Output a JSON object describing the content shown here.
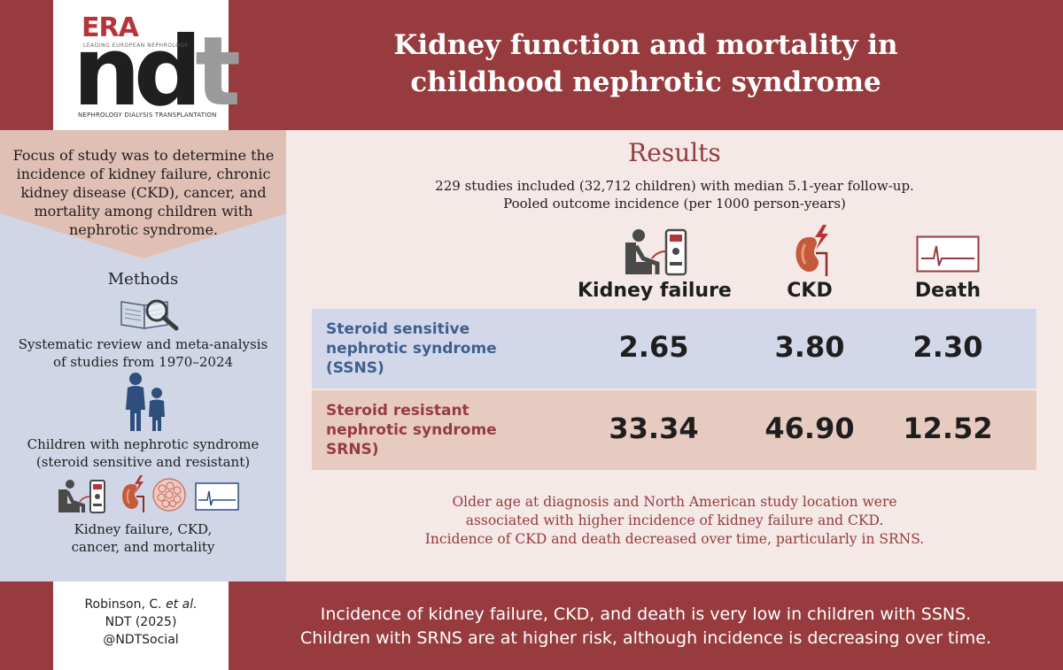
{
  "logo": {
    "era": "ERA",
    "era_sub": "LEADING EUROPEAN NEPHROLOGY",
    "ndt_nd": "nd",
    "ndt_t": "t",
    "sub": "NEPHROLOGY DIALYSIS TRANSPLANTATION"
  },
  "title": {
    "line1": "Kidney function and mortality in",
    "line2": "childhood nephrotic syndrome"
  },
  "focus": {
    "lines": [
      "Focus of study was to determine the",
      "incidence of kidney failure, chronic",
      "kidney disease (CKD), cancer, and",
      "mortality among children with",
      "nephrotic syndrome."
    ]
  },
  "methods": {
    "title": "Methods",
    "item1": [
      "Systematic review and meta-analysis",
      "of studies from 1970–2024"
    ],
    "item2": [
      "Children with nephrotic syndrome",
      "(steroid sensitive and resistant)"
    ],
    "item3": [
      "Kidney failure, CKD,",
      "cancer, and mortality"
    ]
  },
  "results": {
    "title": "Results",
    "sub1": "229 studies included (32,712 children) with median 5.1-year follow-up.",
    "sub2": "Pooled outcome incidence (per 1000 person-years)",
    "columns": [
      "Kidney failure",
      "CKD",
      "Death"
    ],
    "rows": [
      {
        "label": [
          "Steroid sensitive",
          "nephrotic syndrome",
          "(SSNS)"
        ],
        "values": [
          "2.65",
          "3.80",
          "2.30"
        ]
      },
      {
        "label": [
          "Steroid resistant",
          "nephrotic syndrome",
          "SRNS)"
        ],
        "values": [
          "33.34",
          "46.90",
          "12.52"
        ]
      }
    ],
    "conclusion": [
      "Older age at diagnosis and North American study location were",
      "associated with higher incidence of kidney failure and CKD.",
      "Incidence of CKD and death decreased over time, particularly in SRNS."
    ]
  },
  "footer": {
    "cite": {
      "author": "Robinson, C. ",
      "etal": "et al.",
      "journal": "NDT (2025)",
      "handle": "@NDTSocial"
    },
    "text": [
      "Incidence of kidney failure, CKD, and death is very low in children with SSNS.",
      "Children with SRNS are at higher risk, although incidence is decreasing over time."
    ]
  },
  "colors": {
    "maroon": "#973b3f",
    "blue_label": "#3f5f8f",
    "ssns_row": "#d2d8ea",
    "srns_row": "#e8cbc0"
  },
  "icons": [
    "dialysis-icon",
    "kidney-icon",
    "ecg-monitor-icon",
    "magnifier-book-icon",
    "family-icon",
    "cancer-cell-icon"
  ]
}
